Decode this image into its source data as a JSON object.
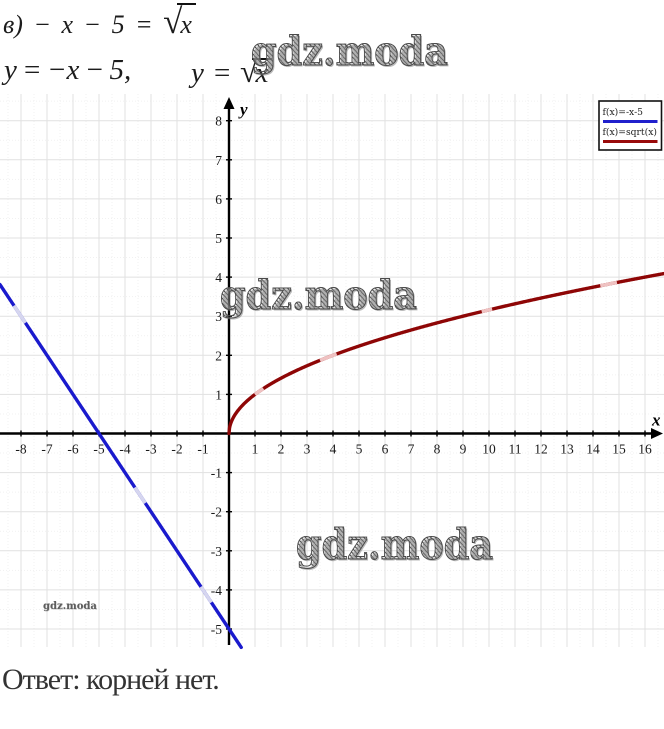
{
  "problem": {
    "part_equation_prefix": "в) − x − 5 = ",
    "part_equation_radicand": "x",
    "line2_left": "y = −x − 5,",
    "line2_right_prefix": "y = ",
    "line2_radicand": "x",
    "answer": "Ответ: корней нет."
  },
  "watermark": {
    "text": "gdz.moda"
  },
  "chart_data": {
    "type": "line",
    "title": "",
    "xlabel": "x",
    "ylabel": "y",
    "xlim": [
      -8.81,
      16.73
    ],
    "ylim": [
      -5.46,
      8.68
    ],
    "grid": {
      "visible": true,
      "major_step": 1,
      "minor_step": 0.5
    },
    "xticks": [
      -8,
      -7,
      -6,
      -5,
      -4,
      -3,
      -2,
      -1,
      1,
      2,
      3,
      4,
      5,
      6,
      7,
      8,
      9,
      10,
      11,
      12,
      13,
      14,
      15,
      16
    ],
    "yticks": [
      -5,
      -4,
      -3,
      -2,
      -1,
      1,
      2,
      3,
      4,
      5,
      6,
      7,
      8
    ],
    "series": [
      {
        "name": "f(x)=-x-5",
        "expr": "y = -x - 5",
        "fn": "linear",
        "slope": -1,
        "intercept": -5,
        "color": "#1a1acd",
        "light_color": "#d6d6ef",
        "domain": [
          -8.81,
          0.47
        ],
        "points": {
          "x": [
            -9,
            -8,
            -7,
            -6,
            -5,
            -4,
            -3,
            -2,
            -1,
            0
          ],
          "y": [
            4,
            3,
            2,
            1,
            0,
            -1,
            -2,
            -3,
            -4,
            -5
          ]
        },
        "light_segments": [
          [
            -8.27,
            -7.83
          ],
          [
            -3.62,
            -3.22
          ],
          [
            -1.08,
            -0.68
          ]
        ]
      },
      {
        "name": "f(x)=sqrt(x)",
        "expr": "y = sqrt(x)",
        "fn": "sqrt",
        "color": "#8e0606",
        "light_color": "#efc2c2",
        "domain": [
          0,
          16.73
        ],
        "points": {
          "x": [
            0,
            1,
            2,
            4,
            6,
            9,
            12,
            16
          ],
          "y": [
            0,
            1,
            1.41,
            2,
            2.45,
            3,
            3.46,
            4
          ]
        },
        "light_segments": [
          [
            1.0,
            1.32
          ],
          [
            3.5,
            4.15
          ],
          [
            9.72,
            10.12
          ],
          [
            14.28,
            14.92
          ]
        ]
      }
    ],
    "legend": {
      "position": "top-right",
      "entries": [
        {
          "label": "f(x)=-x-5",
          "color": "#2020cc"
        },
        {
          "label": "f(x)=sqrt(x)",
          "color": "#990a0a"
        }
      ]
    }
  }
}
